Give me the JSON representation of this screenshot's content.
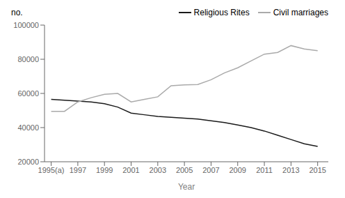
{
  "chart_data": {
    "type": "line",
    "x_label": "Year",
    "y_label": "no.",
    "x": [
      1995,
      1996,
      1997,
      1998,
      1999,
      2000,
      2001,
      2002,
      2003,
      2004,
      2005,
      2006,
      2007,
      2008,
      2009,
      2010,
      2011,
      2012,
      2013,
      2014,
      2015
    ],
    "series": [
      {
        "name": "Religious Rites",
        "color": "#1a1a1a",
        "values": [
          56500,
          56000,
          55500,
          55000,
          54000,
          52000,
          48500,
          47500,
          46500,
          46000,
          45500,
          45000,
          44000,
          43000,
          41500,
          40000,
          38000,
          35500,
          33000,
          30500,
          29000
        ]
      },
      {
        "name": "Civil marriages",
        "color": "#aaaaaa",
        "values": [
          49500,
          49500,
          55000,
          57500,
          59500,
          60000,
          55000,
          56500,
          58000,
          64500,
          65000,
          65200,
          68000,
          72000,
          75000,
          79000,
          83000,
          84000,
          88000,
          86000,
          85000
        ]
      }
    ],
    "xlim": [
      1994.5,
      2015.8
    ],
    "xticks": [
      {
        "value": 1995,
        "label": "1995(a)"
      },
      1997,
      1999,
      2001,
      2003,
      2005,
      2007,
      2009,
      2011,
      2013,
      2015
    ],
    "ylim": [
      20000,
      100000
    ],
    "yticks": [
      20000,
      40000,
      60000,
      80000,
      100000
    ],
    "grid": false,
    "legend": "upper right"
  }
}
